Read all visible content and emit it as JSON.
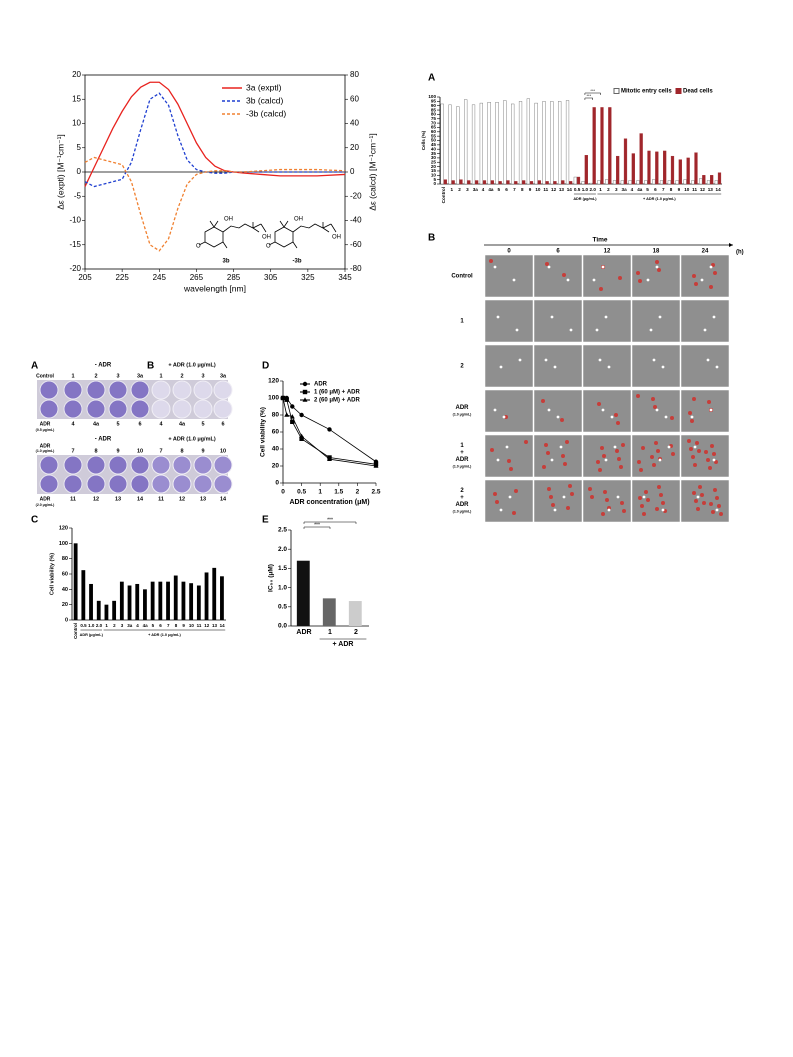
{
  "chart_data": [
    {
      "type": "line",
      "box": true,
      "zero_line": true,
      "legend": "top-right",
      "x": [
        205,
        210,
        215,
        220,
        225,
        230,
        235,
        240,
        245,
        250,
        255,
        260,
        265,
        270,
        275,
        280,
        285,
        290,
        300,
        310,
        320,
        330,
        345
      ],
      "xlim": [
        205,
        345
      ],
      "xticks": [
        205,
        225,
        245,
        265,
        285,
        305,
        325,
        345
      ],
      "ylim": [
        -20,
        20
      ],
      "yticks": [
        -20,
        -15,
        -10,
        -5,
        0,
        5,
        10,
        15,
        20
      ],
      "y2lim": [
        -80,
        80
      ],
      "y2ticks": [
        -80,
        -60,
        -40,
        -20,
        0,
        20,
        40,
        60,
        80
      ],
      "xlabel": "wavelength [nm]",
      "ylabel": "Δε (exptl) [M⁻¹cm⁻¹]",
      "y2label": "Δε (calcd) [M⁻¹cm⁻¹]",
      "annotations": [
        "3b",
        "-3b"
      ],
      "series": [
        {
          "name": "3a (exptl)",
          "color": "#e8231f",
          "dash": false,
          "values": [
            -3,
            1,
            5,
            9,
            12.5,
            15.5,
            17.5,
            18.5,
            18.5,
            17,
            14,
            10,
            6,
            3,
            1.2,
            0.3,
            0,
            -0.2,
            -0.5,
            -0.8,
            -0.8,
            -0.8,
            -0.5
          ]
        },
        {
          "name": "3b (calcd)",
          "color": "#1f3fd0",
          "dash": true,
          "axis": "y2",
          "values": [
            -8,
            -12,
            -10,
            -8,
            -6,
            8,
            35,
            60,
            65,
            55,
            30,
            10,
            2,
            0,
            -1,
            -1,
            0,
            0,
            0,
            0,
            0,
            0,
            0
          ]
        },
        {
          "name": "-3b (calcd)",
          "color": "#f08030",
          "dash": true,
          "axis": "y2",
          "values": [
            8,
            12,
            10,
            8,
            6,
            -8,
            -35,
            -60,
            -65,
            -55,
            -30,
            -10,
            -2,
            0,
            1,
            1,
            0,
            0,
            1,
            2,
            2,
            2,
            1
          ]
        }
      ]
    },
    {
      "type": "bar",
      "legend": "top-right",
      "categories": [
        "Control",
        "1",
        "2",
        "3",
        "3a",
        "4",
        "4a",
        "5",
        "6",
        "7",
        "8",
        "9",
        "10",
        "11",
        "12",
        "13",
        "14",
        "0.5",
        "1.0",
        "2.0",
        "1",
        "2",
        "3",
        "3a",
        "4",
        "4a",
        "5",
        "6",
        "7",
        "8",
        "9",
        "10",
        "11",
        "12",
        "13",
        "14"
      ],
      "ylim": [
        0,
        100
      ],
      "yticks": [
        0,
        5,
        10,
        15,
        20,
        25,
        30,
        35,
        40,
        45,
        50,
        55,
        60,
        65,
        70,
        75,
        80,
        85,
        90,
        95,
        100
      ],
      "ylabel": "Cells (%)",
      "group_labels": [
        "ADR (μg/mL)",
        "+ ADR (1.0 μg/mL)"
      ],
      "annotations": [
        "***",
        "***"
      ],
      "series": [
        {
          "name": "Mitotic entry cells",
          "color": "#ffffff",
          "edge_color": "#666666",
          "values": [
            92,
            91,
            89,
            97,
            91,
            93,
            94,
            94,
            96,
            92,
            95,
            98,
            93,
            95,
            95,
            95,
            96,
            8,
            3,
            1,
            4,
            5,
            4,
            4,
            4,
            4,
            4,
            5,
            4,
            4,
            4,
            5,
            4,
            6,
            4,
            4
          ]
        },
        {
          "name": "Dead cells",
          "color": "#a0262b",
          "edge_color": "#a0262b",
          "values": [
            5,
            4,
            5,
            4,
            4,
            4,
            4,
            3,
            4,
            3,
            4,
            3,
            4,
            3,
            3,
            4,
            3,
            8,
            33,
            88,
            88,
            88,
            32,
            52,
            35,
            58,
            38,
            37,
            38,
            32,
            28,
            30,
            36,
            10,
            10,
            13
          ]
        }
      ]
    },
    {
      "type": "line",
      "legend": "top-right",
      "x": [
        0,
        0.1,
        0.25,
        0.5,
        1.25,
        2.5
      ],
      "xlim": [
        0,
        2.5
      ],
      "xticks": [
        0,
        0.5,
        1,
        1.5,
        2,
        2.5
      ],
      "ylim": [
        0,
        120
      ],
      "yticks": [
        0,
        20,
        40,
        60,
        80,
        100,
        120
      ],
      "xlabel": "ADR concentration (μM)",
      "ylabel": "Cell viability (%)",
      "series": [
        {
          "name": "ADR",
          "color": "#000000",
          "marker": "circle",
          "values": [
            100,
            100,
            90,
            80,
            63,
            25
          ]
        },
        {
          "name": "1 (60 μM) + ADR",
          "color": "#000000",
          "marker": "square",
          "values": [
            100,
            98,
            72,
            52,
            30,
            22
          ]
        },
        {
          "name": "2 (60 μM) + ADR",
          "color": "#000000",
          "marker": "triangle",
          "values": [
            100,
            80,
            78,
            55,
            28,
            20
          ]
        }
      ]
    },
    {
      "type": "bar",
      "color": "#000000",
      "categories": [
        "Control",
        "0.5",
        "1.0",
        "2.0",
        "1",
        "2",
        "3",
        "3a",
        "4",
        "4a",
        "5",
        "6",
        "7",
        "8",
        "9",
        "10",
        "11",
        "12",
        "13",
        "14"
      ],
      "values": [
        100,
        65,
        47,
        25,
        20,
        25,
        50,
        45,
        47,
        40,
        50,
        50,
        50,
        58,
        50,
        48,
        45,
        62,
        68,
        57
      ],
      "ylim": [
        0,
        120
      ],
      "yticks": [
        0,
        20,
        40,
        60,
        80,
        100,
        120
      ],
      "ylabel": "Cell viability (%)",
      "group_labels": [
        "ADR (μg/mL)",
        "+ ADR (1.0 μg/mL)"
      ]
    },
    {
      "type": "bar",
      "categories": [
        "ADR",
        "1",
        "2"
      ],
      "values": [
        1.7,
        0.72,
        0.65
      ],
      "colors": [
        "#111111",
        "#666666",
        "#cccccc"
      ],
      "ylim": [
        0,
        2.5
      ],
      "yticks": [
        {
          "value": 0,
          "label": "0.0"
        },
        0.5,
        {
          "value": 1,
          "label": "1.0"
        },
        1.5,
        {
          "value": 2,
          "label": "2.0"
        },
        2.5
      ],
      "ylabel": "IC₅₀ (μM)",
      "group_labels": [
        "+ ADR"
      ],
      "annotations": [
        "***",
        "***"
      ]
    }
  ],
  "letters": [
    "A",
    "B",
    "A",
    "B",
    "C",
    "D",
    "E"
  ],
  "microscopy": {
    "time_label": "Time",
    "times": [
      "0",
      "6",
      "12",
      "18",
      "24"
    ],
    "unit": "(h)",
    "rows": [
      [
        "Control"
      ],
      [
        "1"
      ],
      [
        "2"
      ],
      [
        "ADR",
        "(1.0 μg/mL)"
      ],
      [
        "1",
        "+",
        "ADR",
        "(1.0 μg/mL)"
      ],
      [
        "2",
        "+",
        "ADR",
        "(1.0 μg/mL)"
      ]
    ]
  },
  "wells": [
    {
      "minus": "- ADR",
      "plus": "+ ADR (1.0 μg/mL)",
      "top_label": [
        "Control"
      ],
      "top": [
        "1",
        "2",
        "3",
        "3a"
      ],
      "top_b": [
        "1",
        "2",
        "3",
        "3a"
      ],
      "bottom_label": [
        "ADR",
        "(0.5 μg/mL)"
      ],
      "bottom": [
        "4",
        "4a",
        "5",
        "6"
      ],
      "bottom_b": [
        "4",
        "4a",
        "5",
        "6"
      ]
    },
    {
      "minus": "- ADR",
      "plus": "+ ADR (1.0 μg/mL)",
      "top_label": [
        "ADR",
        "(1.0 μg/mL)"
      ],
      "top": [
        "7",
        "8",
        "9",
        "10"
      ],
      "top_b": [
        "7",
        "8",
        "9",
        "10"
      ],
      "bottom_label": [
        "ADR",
        "(2.0 μg/mL)"
      ],
      "bottom": [
        "11",
        "12",
        "13",
        "14"
      ],
      "bottom_b": [
        "11",
        "12",
        "13",
        "14"
      ]
    }
  ]
}
